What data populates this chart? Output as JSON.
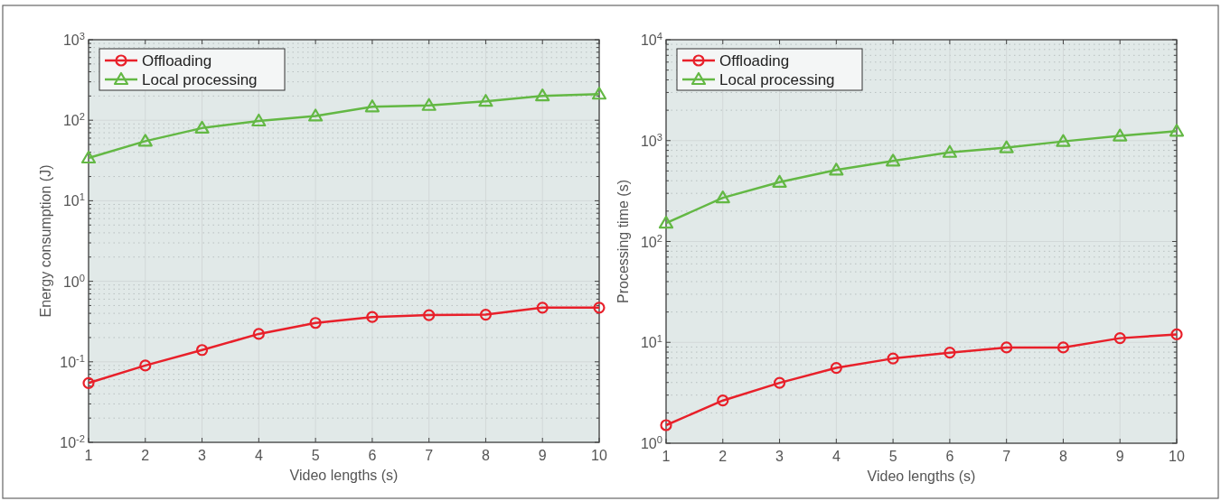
{
  "chart_data": [
    {
      "type": "line",
      "xlabel": "Video lengths (s)",
      "ylabel": "Energy consumption (J)",
      "x": [
        1,
        2,
        3,
        4,
        5,
        6,
        7,
        8,
        9,
        10
      ],
      "xlim": [
        1,
        10
      ],
      "xticks": [
        1,
        2,
        3,
        4,
        5,
        6,
        7,
        8,
        9,
        10
      ],
      "ylim": [
        0.01,
        1000
      ],
      "log": "y",
      "yticks": [
        {
          "value": 0.01,
          "label": "10$^{-2}$"
        },
        {
          "value": 0.1,
          "label": "10$^{-1}$"
        },
        {
          "value": 1,
          "label": "10$^{0}$"
        },
        {
          "value": 10,
          "label": "10$^{1}$"
        },
        {
          "value": 100,
          "label": "10$^{2}$"
        },
        {
          "value": 1000,
          "label": "10$^{3}$"
        }
      ],
      "grid": true,
      "legend": "top left",
      "line_style": "solid",
      "series": [
        {
          "name": "Offloading",
          "color": "#e8202a",
          "marker": "circle",
          "values": [
            0.0545,
            0.09,
            0.14,
            0.222,
            0.304,
            0.36,
            0.38,
            0.385,
            0.47,
            0.47
          ]
        },
        {
          "name": "Local processing",
          "color": "#63b844",
          "marker": "triangle",
          "values": [
            34,
            55,
            80,
            98,
            113,
            147,
            153,
            172,
            201,
            211
          ]
        }
      ]
    },
    {
      "type": "line",
      "xlabel": "Video lengths (s)",
      "ylabel": "Processing time (s)",
      "x": [
        1,
        2,
        3,
        4,
        5,
        6,
        7,
        8,
        9,
        10
      ],
      "xlim": [
        1,
        10
      ],
      "xticks": [
        1,
        2,
        3,
        4,
        5,
        6,
        7,
        8,
        9,
        10
      ],
      "ylim": [
        1,
        10000
      ],
      "log": "y",
      "yticks": [
        {
          "value": 1,
          "label": "10$^{0}$"
        },
        {
          "value": 10,
          "label": "10$^{1}$"
        },
        {
          "value": 100,
          "label": "10$^{2}$"
        },
        {
          "value": 1000,
          "label": "10$^{3}$"
        },
        {
          "value": 10000,
          "label": "10$^{4}$"
        }
      ],
      "grid": true,
      "legend": "top left",
      "line_style": "solid",
      "series": [
        {
          "name": "Offloading",
          "color": "#e8202a",
          "marker": "circle",
          "values": [
            1.51,
            2.65,
            3.97,
            5.58,
            6.92,
            7.9,
            8.9,
            8.9,
            11.0,
            12.0
          ]
        },
        {
          "name": "Local processing",
          "color": "#63b844",
          "marker": "triangle",
          "values": [
            152,
            271,
            387,
            511,
            628,
            765,
            851,
            982,
            1113,
            1240
          ]
        }
      ]
    }
  ]
}
